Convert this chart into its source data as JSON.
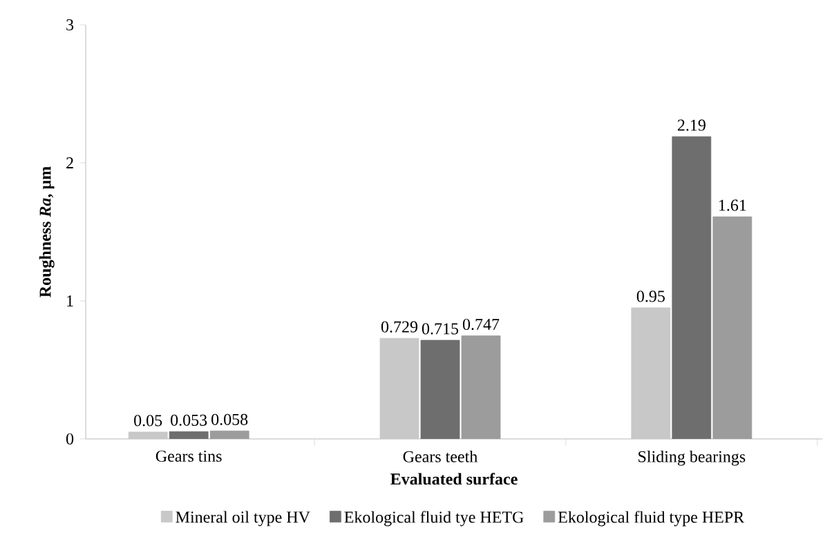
{
  "chart_data": {
    "type": "bar",
    "xlabel": "Evaluated surface",
    "ylabel": "Roughness *Ra*, µm",
    "categories": [
      "Gears tins",
      "Gears teeth",
      "Sliding bearings"
    ],
    "series": [
      {
        "name": "Mineral oil type HV",
        "color": "#c8c8c8",
        "values": [
          0.05,
          0.729,
          0.95
        ]
      },
      {
        "name": "Ekological fluid tye HETG",
        "color": "#6e6e6e",
        "values": [
          0.053,
          0.715,
          2.19
        ]
      },
      {
        "name": "Ekological fluid type HEPR",
        "color": "#9c9c9c",
        "values": [
          0.058,
          0.747,
          1.61
        ]
      }
    ],
    "ylim": [
      0,
      3
    ],
    "yticks": [
      0,
      1,
      2,
      3
    ],
    "data_labels": true,
    "legend": "bottom",
    "grid": false
  }
}
